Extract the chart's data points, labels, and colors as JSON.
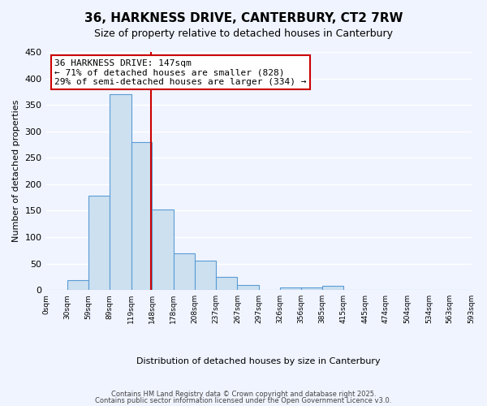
{
  "title": "36, HARKNESS DRIVE, CANTERBURY, CT2 7RW",
  "subtitle": "Size of property relative to detached houses in Canterbury",
  "xlabel": "Distribution of detached houses by size in Canterbury",
  "ylabel": "Number of detached properties",
  "bar_color": "#cce0f0",
  "bar_edge_color": "#5b9bd5",
  "background_color": "#f0f4ff",
  "grid_color": "#ffffff",
  "annotation_box_color": "#cc0000",
  "annotation_line_color": "#cc0000",
  "property_line_x": 147,
  "property_line_color": "#cc0000",
  "bin_edges": [
    0,
    30,
    59,
    89,
    119,
    148,
    178,
    208,
    237,
    267,
    297,
    326,
    356,
    385,
    415,
    445,
    474,
    504,
    534,
    563,
    593
  ],
  "bin_labels": [
    "0sqm",
    "30sqm",
    "59sqm",
    "89sqm",
    "119sqm",
    "148sqm",
    "178sqm",
    "208sqm",
    "237sqm",
    "267sqm",
    "297sqm",
    "326sqm",
    "356sqm",
    "385sqm",
    "415sqm",
    "445sqm",
    "474sqm",
    "504sqm",
    "534sqm",
    "563sqm",
    "593sqm"
  ],
  "bar_heights": [
    0,
    18,
    178,
    370,
    280,
    152,
    70,
    55,
    24,
    10,
    0,
    5,
    5,
    8,
    0,
    0,
    0,
    0,
    0,
    0
  ],
  "ylim": [
    0,
    450
  ],
  "yticks": [
    0,
    50,
    100,
    150,
    200,
    250,
    300,
    350,
    400,
    450
  ],
  "annotation_text": "36 HARKNESS DRIVE: 147sqm\n← 71% of detached houses are smaller (828)\n29% of semi-detached houses are larger (334) →",
  "footer_line1": "Contains HM Land Registry data © Crown copyright and database right 2025.",
  "footer_line2": "Contains public sector information licensed under the Open Government Licence v3.0."
}
